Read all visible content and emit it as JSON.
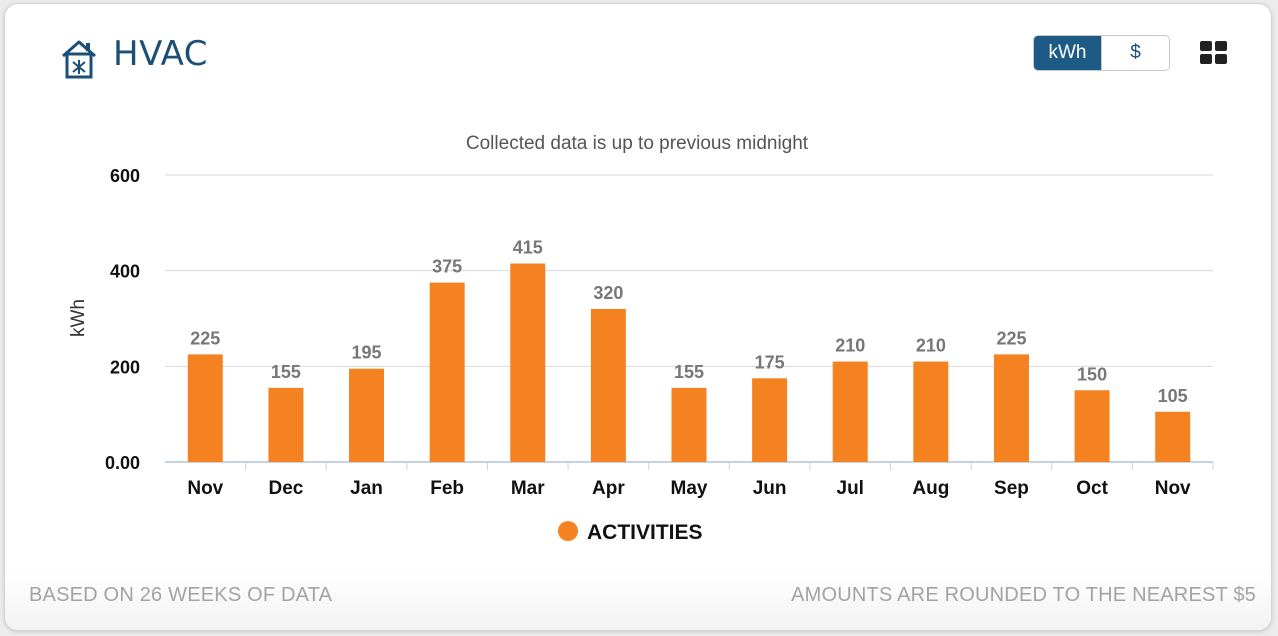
{
  "header": {
    "title": "HVAC",
    "icon": "house-hvac-icon",
    "unit_toggle": [
      {
        "label": "kWh",
        "active": true
      },
      {
        "label": "$",
        "active": false
      }
    ],
    "view_icon": "grid-view-icon"
  },
  "footer": {
    "left": "BASED ON 26 WEEKS OF DATA",
    "right": "AMOUNTS ARE ROUNDED TO THE NEAREST $5"
  },
  "colors": {
    "accent": "#1c4f78",
    "bar": "#f58220"
  },
  "chart_data": {
    "type": "bar",
    "subtitle": "Collected data is up to previous midnight",
    "ylabel": "kWh",
    "xlabel": "",
    "categories": [
      "Nov",
      "Dec",
      "Jan",
      "Feb",
      "Mar",
      "Apr",
      "May",
      "Jun",
      "Jul",
      "Aug",
      "Sep",
      "Oct",
      "Nov"
    ],
    "series": [
      {
        "name": "ACTIVITIES",
        "values": [
          225,
          155,
          195,
          375,
          415,
          320,
          155,
          175,
          210,
          210,
          225,
          150,
          105
        ]
      }
    ],
    "ylim": [
      0,
      600
    ],
    "yticks": [
      0,
      200,
      400,
      600
    ],
    "ytick_labels": [
      "0.00",
      "200",
      "400",
      "600"
    ],
    "grid": true,
    "legend": "bottom-center",
    "data_labels": true
  }
}
